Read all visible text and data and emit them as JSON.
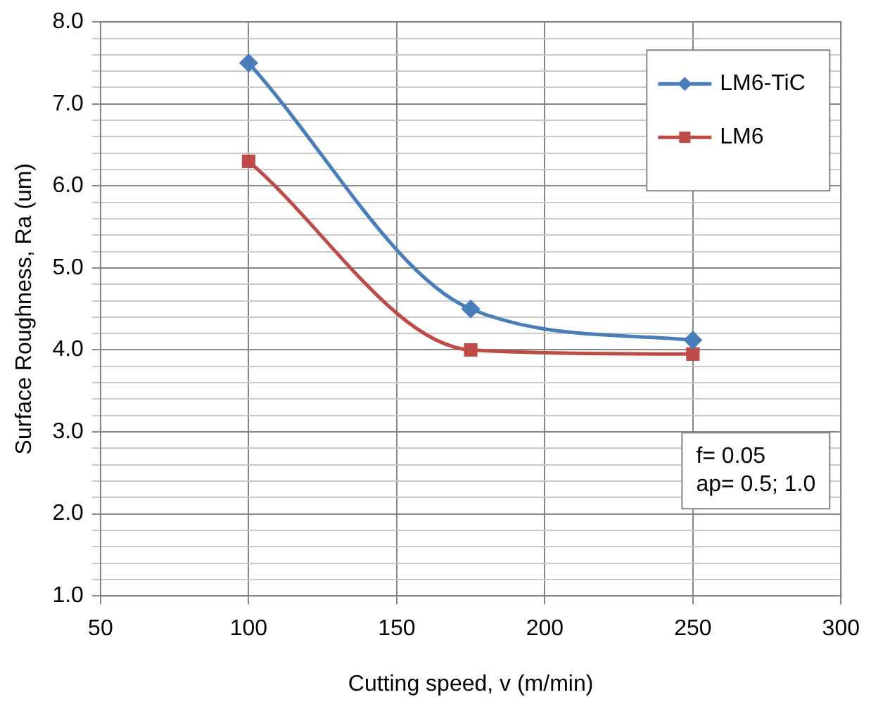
{
  "chart_data": {
    "type": "line",
    "xlabel": "Cutting speed, v (m/min)",
    "ylabel": "Surface Roughness, Ra (um)",
    "xlim": [
      50,
      300
    ],
    "xticks": [
      50,
      100,
      150,
      200,
      250,
      300
    ],
    "ylim": [
      1,
      8
    ],
    "yticks": [
      {
        "value": 1,
        "label": "1.0"
      },
      {
        "value": 1.2,
        "label": null
      },
      {
        "value": 1.4,
        "label": null
      },
      {
        "value": 1.6,
        "label": null
      },
      {
        "value": 1.8,
        "label": null
      },
      {
        "value": 2,
        "label": "2.0"
      },
      {
        "value": 2.2,
        "label": null
      },
      {
        "value": 2.4,
        "label": null
      },
      {
        "value": 2.6,
        "label": null
      },
      {
        "value": 2.8,
        "label": null
      },
      {
        "value": 3,
        "label": "3.0"
      },
      {
        "value": 3.2,
        "label": null
      },
      {
        "value": 3.4,
        "label": null
      },
      {
        "value": 3.6,
        "label": null
      },
      {
        "value": 3.8,
        "label": null
      },
      {
        "value": 4,
        "label": "4.0"
      },
      {
        "value": 4.2,
        "label": null
      },
      {
        "value": 4.4,
        "label": null
      },
      {
        "value": 4.6,
        "label": null
      },
      {
        "value": 4.8,
        "label": null
      },
      {
        "value": 5,
        "label": "5.0"
      },
      {
        "value": 5.2,
        "label": null
      },
      {
        "value": 5.4,
        "label": null
      },
      {
        "value": 5.6,
        "label": null
      },
      {
        "value": 5.8,
        "label": null
      },
      {
        "value": 6,
        "label": "6.0"
      },
      {
        "value": 6.2,
        "label": null
      },
      {
        "value": 6.4,
        "label": null
      },
      {
        "value": 6.6,
        "label": null
      },
      {
        "value": 6.8,
        "label": null
      },
      {
        "value": 7,
        "label": "7.0"
      },
      {
        "value": 7.2,
        "label": null
      },
      {
        "value": 7.4,
        "label": null
      },
      {
        "value": 7.6,
        "label": null
      },
      {
        "value": 7.8,
        "label": null
      },
      {
        "value": 8,
        "label": "8.0"
      }
    ],
    "x": [
      100,
      175,
      250
    ],
    "series": [
      {
        "name": "LM6-TiC",
        "color": "#4a7ebb",
        "marker": "diamond",
        "values": [
          7.5,
          4.5,
          4.12
        ]
      },
      {
        "name": "LM6",
        "color": "#be4b48",
        "marker": "square",
        "values": [
          6.3,
          4.0,
          3.95
        ]
      }
    ],
    "grid": true,
    "legend": "top right",
    "line_style": "solid",
    "annotations": [
      "f= 0.05",
      "ap= 0.5; 1.0"
    ]
  }
}
